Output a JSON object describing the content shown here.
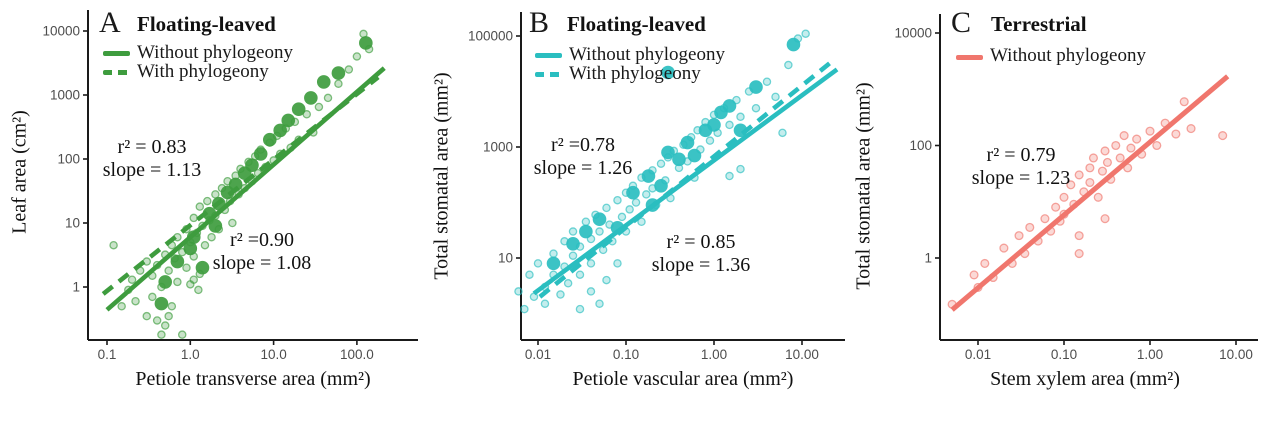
{
  "figure": {
    "background": "#ffffff",
    "axis_color": "#1a1a1a",
    "tick_label_color": "#4d4d4d"
  },
  "chart_data": [
    {
      "type": "scatter",
      "letter": "A",
      "title": "Floating-leaved",
      "color": "#3E9C3E",
      "xlabel": "Petiole transverse area (mm²)",
      "ylabel": "Leaf area (cm²)",
      "x_scale": "log",
      "y_scale": "log",
      "xlim": [
        0.06,
        540
      ],
      "ylim": [
        0.15,
        21000
      ],
      "x_tick_values": [
        0.1,
        1,
        10,
        100
      ],
      "x_tick_labels": [
        "0.1",
        "1.0",
        "10.0",
        "100.0"
      ],
      "y_tick_values": [
        1,
        10,
        100,
        1000,
        10000
      ],
      "y_tick_labels": [
        "1",
        "10",
        "100",
        "1000",
        "10000"
      ],
      "legend": [
        {
          "label": "Without phylogeony",
          "style": "solid"
        },
        {
          "label": "With phylogeony",
          "style": "dashed"
        }
      ],
      "lines": [
        {
          "style": "solid",
          "name": "Without phylogeony",
          "r2": 0.83,
          "slope": 1.13,
          "x1": 0.1,
          "y1": 0.44,
          "x2": 213,
          "y2": 2630
        },
        {
          "style": "dashed",
          "name": "With phylogeony",
          "r2": 0.9,
          "slope": 1.08,
          "x1": 0.09,
          "y1": 0.78,
          "x2": 180,
          "y2": 1900
        }
      ],
      "annotations": [
        {
          "lines": [
            "r² = 0.83",
            "slope = 1.13"
          ]
        },
        {
          "lines": [
            "r² =0.90",
            "slope = 1.08"
          ]
        }
      ],
      "points_small": [
        [
          0.12,
          4.5
        ],
        [
          0.15,
          0.5
        ],
        [
          0.18,
          0.9
        ],
        [
          0.2,
          1.3
        ],
        [
          0.22,
          0.6
        ],
        [
          0.25,
          1.8
        ],
        [
          0.3,
          0.35
        ],
        [
          0.3,
          2.5
        ],
        [
          0.35,
          0.7
        ],
        [
          0.35,
          1.5
        ],
        [
          0.4,
          0.3
        ],
        [
          0.4,
          2.2
        ],
        [
          0.45,
          1.0
        ],
        [
          0.5,
          0.25
        ],
        [
          0.5,
          3.2
        ],
        [
          0.55,
          1.8
        ],
        [
          0.6,
          0.5
        ],
        [
          0.6,
          4.5
        ],
        [
          0.65,
          2.8
        ],
        [
          0.7,
          1.2
        ],
        [
          0.7,
          6
        ],
        [
          0.8,
          3.5
        ],
        [
          0.8,
          0.18
        ],
        [
          0.9,
          8
        ],
        [
          0.9,
          2.0
        ],
        [
          1.0,
          5
        ],
        [
          1.0,
          1.1
        ],
        [
          1.1,
          12
        ],
        [
          1.1,
          3
        ],
        [
          1.2,
          7
        ],
        [
          1.3,
          1.6
        ],
        [
          1.3,
          18
        ],
        [
          1.4,
          9
        ],
        [
          1.5,
          4.5
        ],
        [
          1.6,
          22
        ],
        [
          1.7,
          11
        ],
        [
          1.8,
          6
        ],
        [
          2.0,
          28
        ],
        [
          2.0,
          13
        ],
        [
          2.2,
          8
        ],
        [
          2.4,
          35
        ],
        [
          2.6,
          16
        ],
        [
          2.8,
          45
        ],
        [
          3.0,
          22
        ],
        [
          3.2,
          10
        ],
        [
          3.5,
          55
        ],
        [
          3.8,
          28
        ],
        [
          4.0,
          70
        ],
        [
          4.5,
          35
        ],
        [
          5.0,
          90
        ],
        [
          5.5,
          45
        ],
        [
          6.0,
          110
        ],
        [
          6.5,
          60
        ],
        [
          7.0,
          140
        ],
        [
          8.0,
          75
        ],
        [
          9.0,
          180
        ],
        [
          10,
          95
        ],
        [
          11,
          230
        ],
        [
          12,
          120
        ],
        [
          14,
          300
        ],
        [
          16,
          150
        ],
        [
          18,
          380
        ],
        [
          20,
          200
        ],
        [
          25,
          500
        ],
        [
          30,
          260
        ],
        [
          35,
          650
        ],
        [
          45,
          900
        ],
        [
          60,
          1500
        ],
        [
          80,
          2500
        ],
        [
          100,
          4000
        ],
        [
          120,
          9000
        ],
        [
          140,
          5200
        ],
        [
          0.45,
          0.18
        ],
        [
          0.55,
          0.35
        ],
        [
          1.1,
          1.3
        ],
        [
          1.25,
          0.9
        ]
      ],
      "points_large": [
        [
          0.45,
          0.55
        ],
        [
          0.5,
          1.2
        ],
        [
          0.7,
          2.5
        ],
        [
          1.0,
          4
        ],
        [
          1.1,
          6
        ],
        [
          1.4,
          2.0
        ],
        [
          1.7,
          14
        ],
        [
          2.0,
          9
        ],
        [
          2.2,
          20
        ],
        [
          2.8,
          30
        ],
        [
          3.5,
          40
        ],
        [
          4.5,
          60
        ],
        [
          5.5,
          80
        ],
        [
          7,
          120
        ],
        [
          9,
          200
        ],
        [
          12,
          280
        ],
        [
          15,
          400
        ],
        [
          20,
          600
        ],
        [
          28,
          900
        ],
        [
          40,
          1600
        ],
        [
          60,
          2200
        ],
        [
          128,
          6500
        ]
      ]
    },
    {
      "type": "scatter",
      "letter": "B",
      "title": "Floating-leaved",
      "color": "#2ABEC0",
      "xlabel": "Petiole vascular area (mm²)",
      "ylabel": "Total stomatal area (mm²)",
      "x_scale": "log",
      "y_scale": "log",
      "xlim": [
        0.007,
        30
      ],
      "ylim": [
        1,
        200000
      ],
      "x_tick_values": [
        0.01,
        0.1,
        1,
        10
      ],
      "x_tick_labels": [
        "0.01",
        "0.10",
        "1.00",
        "10.00"
      ],
      "y_tick_values": [
        10,
        1000,
        100000
      ],
      "y_tick_labels": [
        "10",
        "1000",
        "100000"
      ],
      "legend": [
        {
          "label": "Without phylogeony",
          "style": "solid"
        },
        {
          "label": "With phylogeony",
          "style": "dashed"
        }
      ],
      "lines": [
        {
          "style": "solid",
          "name": "Without phylogeony",
          "r2": 0.78,
          "slope": 1.26,
          "x1": 0.009,
          "y1": 2.3,
          "x2": 25,
          "y2": 25000
        },
        {
          "style": "dashed",
          "name": "With phylogeony",
          "r2": 0.85,
          "slope": 1.36,
          "x1": 0.0105,
          "y1": 2.0,
          "x2": 21,
          "y2": 33000
        }
      ],
      "annotations": [
        {
          "lines": [
            "r² =0.78",
            "slope = 1.26"
          ]
        },
        {
          "lines": [
            "r² = 0.85",
            "slope = 1.36"
          ]
        }
      ],
      "points_small": [
        [
          0.006,
          2.5
        ],
        [
          0.007,
          1.2
        ],
        [
          0.008,
          5
        ],
        [
          0.009,
          2.0
        ],
        [
          0.01,
          8
        ],
        [
          0.012,
          3
        ],
        [
          0.012,
          1.5
        ],
        [
          0.015,
          12
        ],
        [
          0.015,
          5
        ],
        [
          0.018,
          2.2
        ],
        [
          0.02,
          20
        ],
        [
          0.02,
          7
        ],
        [
          0.022,
          3.5
        ],
        [
          0.025,
          30
        ],
        [
          0.025,
          11
        ],
        [
          0.03,
          16
        ],
        [
          0.03,
          5
        ],
        [
          0.03,
          1.2
        ],
        [
          0.035,
          45
        ],
        [
          0.04,
          22
        ],
        [
          0.04,
          8
        ],
        [
          0.04,
          2.5
        ],
        [
          0.045,
          60
        ],
        [
          0.05,
          30
        ],
        [
          0.05,
          1.5
        ],
        [
          0.055,
          14
        ],
        [
          0.06,
          80
        ],
        [
          0.06,
          4
        ],
        [
          0.065,
          40
        ],
        [
          0.07,
          20
        ],
        [
          0.08,
          110
        ],
        [
          0.08,
          8
        ],
        [
          0.09,
          55
        ],
        [
          0.1,
          150
        ],
        [
          0.1,
          30
        ],
        [
          0.11,
          75
        ],
        [
          0.12,
          200
        ],
        [
          0.13,
          100
        ],
        [
          0.15,
          280
        ],
        [
          0.15,
          45
        ],
        [
          0.17,
          140
        ],
        [
          0.2,
          380
        ],
        [
          0.2,
          180
        ],
        [
          0.22,
          90
        ],
        [
          0.25,
          500
        ],
        [
          0.28,
          250
        ],
        [
          0.3,
          650
        ],
        [
          0.32,
          120
        ],
        [
          0.35,
          850
        ],
        [
          0.4,
          420
        ],
        [
          0.45,
          1100
        ],
        [
          0.5,
          550
        ],
        [
          0.55,
          1500
        ],
        [
          0.6,
          280
        ],
        [
          0.65,
          2000
        ],
        [
          0.7,
          900
        ],
        [
          0.8,
          2800
        ],
        [
          0.9,
          1300
        ],
        [
          1.0,
          3800
        ],
        [
          1.1,
          1800
        ],
        [
          1.3,
          5000
        ],
        [
          1.5,
          2500
        ],
        [
          1.5,
          300
        ],
        [
          1.8,
          7000
        ],
        [
          2.0,
          3500
        ],
        [
          2.0,
          400
        ],
        [
          2.5,
          10000
        ],
        [
          3.0,
          5000
        ],
        [
          4.0,
          15000
        ],
        [
          5.0,
          8000
        ],
        [
          6.0,
          1800
        ],
        [
          7.0,
          30000
        ],
        [
          9.0,
          90000
        ],
        [
          11,
          110000
        ]
      ],
      "points_large": [
        [
          0.015,
          8
        ],
        [
          0.025,
          18
        ],
        [
          0.035,
          30
        ],
        [
          0.05,
          50
        ],
        [
          0.08,
          35
        ],
        [
          0.12,
          150
        ],
        [
          0.18,
          300
        ],
        [
          0.2,
          90
        ],
        [
          0.25,
          200
        ],
        [
          0.3,
          800
        ],
        [
          0.3,
          22000
        ],
        [
          0.4,
          600
        ],
        [
          0.5,
          1200
        ],
        [
          0.6,
          700
        ],
        [
          0.8,
          2000
        ],
        [
          1.0,
          2500
        ],
        [
          1.2,
          4200
        ],
        [
          1.5,
          5500
        ],
        [
          2.0,
          2000
        ],
        [
          3.0,
          12000
        ],
        [
          8.0,
          70000
        ]
      ]
    },
    {
      "type": "scatter",
      "letter": "C",
      "title": "Terrestrial",
      "color": "#F0766D",
      "xlabel": "Stem xylem area (mm²)",
      "ylabel": "Total stomatal area (mm²)",
      "x_scale": "log",
      "y_scale": "log",
      "xlim": [
        0.004,
        20
      ],
      "ylim": [
        0.1,
        30000
      ],
      "x_tick_values": [
        0.01,
        0.1,
        1,
        10
      ],
      "x_tick_labels": [
        "0.01",
        "0.10",
        "1.00",
        "10.00"
      ],
      "y_tick_values": [
        1,
        100,
        10000
      ],
      "y_tick_labels": [
        "1",
        "100",
        "10000"
      ],
      "legend": [
        {
          "label": "Without phylogeony",
          "style": "solid"
        }
      ],
      "lines": [
        {
          "style": "solid",
          "name": "Without phylogeony",
          "r2": 0.79,
          "slope": 1.23,
          "x1": 0.005,
          "y1": 0.12,
          "x2": 8.0,
          "y2": 1700
        }
      ],
      "annotations": [
        {
          "lines": [
            "r² = 0.79",
            "slope = 1.23"
          ]
        }
      ],
      "points_small": [
        [
          0.005,
          0.15
        ],
        [
          0.009,
          0.5
        ],
        [
          0.01,
          0.3
        ],
        [
          0.012,
          0.8
        ],
        [
          0.015,
          0.45
        ],
        [
          0.02,
          1.5
        ],
        [
          0.025,
          0.8
        ],
        [
          0.03,
          2.5
        ],
        [
          0.035,
          1.2
        ],
        [
          0.04,
          3.5
        ],
        [
          0.05,
          2.0
        ],
        [
          0.06,
          5
        ],
        [
          0.07,
          3
        ],
        [
          0.08,
          8
        ],
        [
          0.09,
          4.5
        ],
        [
          0.1,
          12
        ],
        [
          0.1,
          6
        ],
        [
          0.12,
          20
        ],
        [
          0.13,
          9
        ],
        [
          0.15,
          30
        ],
        [
          0.15,
          2.5
        ],
        [
          0.15,
          1.2
        ],
        [
          0.17,
          15
        ],
        [
          0.2,
          40
        ],
        [
          0.2,
          22
        ],
        [
          0.22,
          60
        ],
        [
          0.25,
          12
        ],
        [
          0.28,
          35
        ],
        [
          0.3,
          80
        ],
        [
          0.3,
          5
        ],
        [
          0.32,
          50
        ],
        [
          0.35,
          25
        ],
        [
          0.4,
          100
        ],
        [
          0.45,
          60
        ],
        [
          0.5,
          150
        ],
        [
          0.55,
          40
        ],
        [
          0.6,
          90
        ],
        [
          0.7,
          130
        ],
        [
          0.8,
          70
        ],
        [
          1.0,
          180
        ],
        [
          1.2,
          100
        ],
        [
          1.5,
          250
        ],
        [
          2.0,
          160
        ],
        [
          2.5,
          600
        ],
        [
          3.0,
          200
        ],
        [
          7.0,
          150
        ]
      ],
      "points_large": []
    }
  ]
}
